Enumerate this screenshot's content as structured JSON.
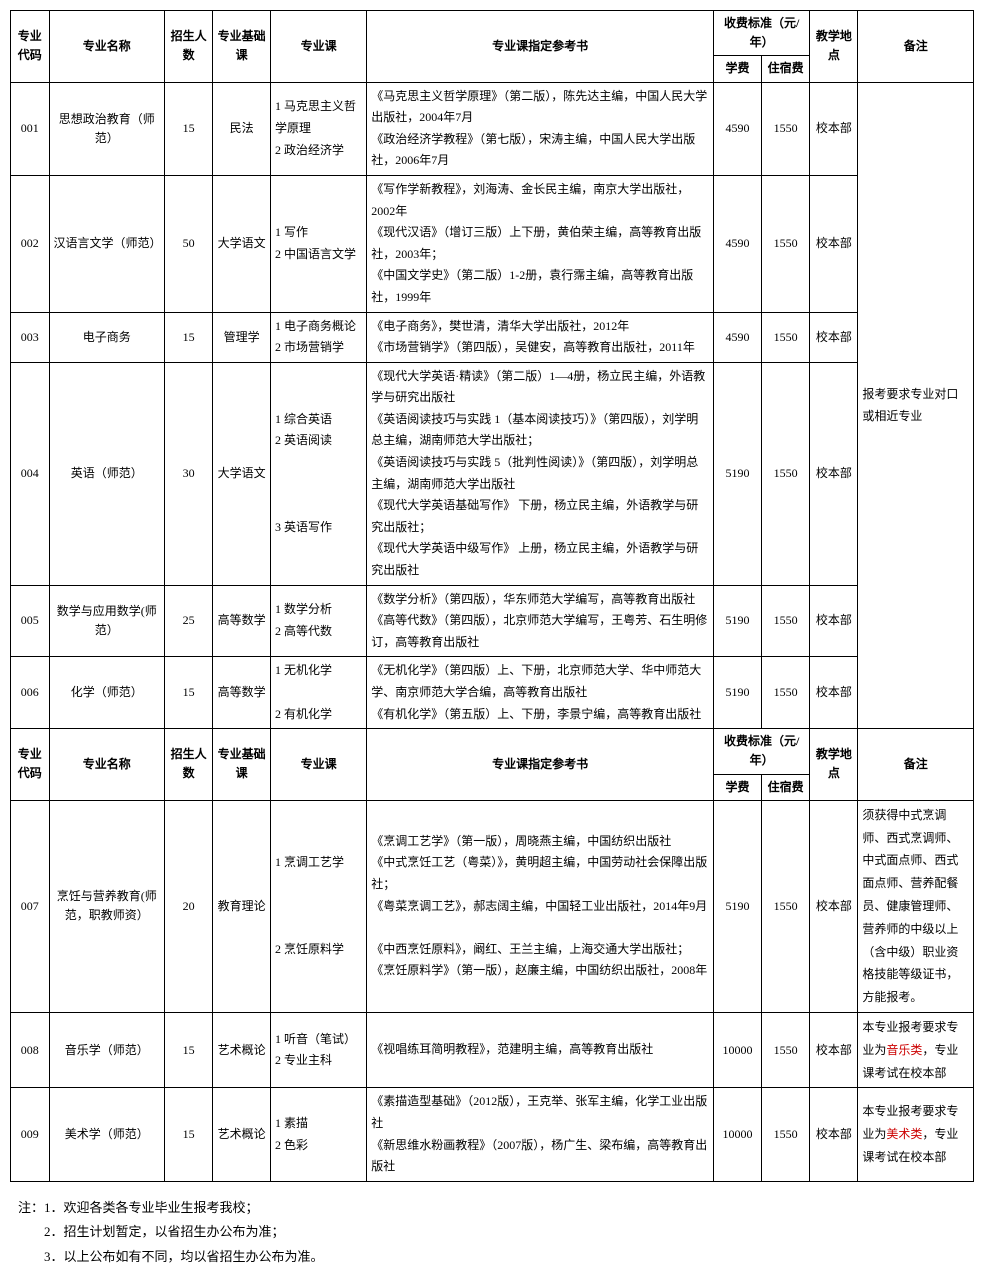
{
  "table1": {
    "headers": {
      "code": "专业代码",
      "name": "专业名称",
      "num": "招生人数",
      "base": "专业基础课",
      "course": "专业课",
      "ref": "专业课指定参考书",
      "fee": "收费标准（元/年）",
      "fee1": "学费",
      "fee2": "住宿费",
      "loc": "教学地点",
      "remark": "备注"
    },
    "rows": [
      {
        "code": "001",
        "name": "思想政治教育（师范）",
        "num": "15",
        "base": "民法",
        "course": "1 马克思主义哲学原理\n2 政治经济学",
        "ref": "《马克思主义哲学原理》（第二版），陈先达主编，中国人民大学出版社，2004年7月\n《政治经济学教程》（第七版），宋涛主编，中国人民大学出版社，2006年7月",
        "fee1": "4590",
        "fee2": "1550",
        "loc": "校本部"
      },
      {
        "code": "002",
        "name": "汉语言文学（师范）",
        "num": "50",
        "base": "大学语文",
        "course": "1 写作\n2 中国语言文学",
        "ref": "《写作学新教程》，刘海涛、金长民主编，南京大学出版社，2002年\n《现代汉语》（增订三版）上下册，黄伯荣主编，高等教育出版社，2003年；\n《中国文学史》（第二版）1-2册，袁行霈主编，高等教育出版社，1999年",
        "fee1": "4590",
        "fee2": "1550",
        "loc": "校本部"
      },
      {
        "code": "003",
        "name": "电子商务",
        "num": "15",
        "base": "管理学",
        "course": "1 电子商务概论\n2 市场营销学",
        "ref": "《电子商务》，樊世清，清华大学出版社，2012年\n《市场营销学》（第四版），吴健安，高等教育出版社，2011年",
        "fee1": "4590",
        "fee2": "1550",
        "loc": "校本部"
      },
      {
        "code": "004",
        "name": "英语（师范）",
        "num": "30",
        "base": "大学语文",
        "course": "1 综合英语\n2 英语阅读\n\n\n\n3 英语写作",
        "ref": "《现代大学英语·精读》（第二版）1—4册，杨立民主编，外语教学与研究出版社\n《英语阅读技巧与实践 1（基本阅读技巧）》（第四版），刘学明总主编，湖南师范大学出版社；\n《英语阅读技巧与实践 5（批判性阅读）》（第四版），刘学明总主编，湖南师范大学出版社\n《现代大学英语基础写作》 下册，杨立民主编，外语教学与研究出版社；\n《现代大学英语中级写作》 上册，杨立民主编，外语教学与研究出版社",
        "fee1": "5190",
        "fee2": "1550",
        "loc": "校本部"
      },
      {
        "code": "005",
        "name": "数学与应用数学(师范）",
        "num": "25",
        "base": "高等数学",
        "course": "1 数学分析\n2 高等代数",
        "ref": "《数学分析》（第四版），华东师范大学编写，高等教育出版社\n《高等代数》（第四版），北京师范大学编写，王粤芳、石生明修订，高等教育出版社",
        "fee1": "5190",
        "fee2": "1550",
        "loc": "校本部"
      },
      {
        "code": "006",
        "name": "化学（师范）",
        "num": "15",
        "base": "高等数学",
        "course": "1 无机化学\n\n2 有机化学",
        "ref": "《无机化学》（第四版）上、下册，北京师范大学、华中师范大学、南京师范大学合编，高等教育出版社\n《有机化学》（第五版）上、下册，李景宁编，高等教育出版社",
        "fee1": "5190",
        "fee2": "1550",
        "loc": "校本部"
      }
    ],
    "remark_common": "报考要求专业对口或相近专业"
  },
  "table2": {
    "rows": [
      {
        "code": "007",
        "name": "烹饪与营养教育(师范，职教师资）",
        "num": "20",
        "base": "教育理论",
        "course": "1 烹调工艺学\n\n\n\n2 烹饪原料学",
        "ref": "《烹调工艺学》（第一版），周晓燕主编，中国纺织出版社\n《中式烹饪工艺（粤菜）》，黄明超主编，中国劳动社会保障出版社；\n《粤菜烹调工艺》，郝志阔主编，中国轻工业出版社，2014年9月\n\n《中西烹饪原料》，阚红、王兰主编，上海交通大学出版社；\n《烹饪原料学》（第一版），赵廉主编，中国纺织出版社，2008年",
        "fee1": "5190",
        "fee2": "1550",
        "loc": "校本部",
        "remark": "须获得中式烹调师、西式烹调师、中式面点师、西式面点师、营养配餐员、健康管理师、营养师的中级以上（含中级）职业资格技能等级证书，方能报考。"
      },
      {
        "code": "008",
        "name": "音乐学（师范）",
        "num": "15",
        "base": "艺术概论",
        "course": "1 听音（笔试）\n2 专业主科",
        "ref": "《视唱练耳简明教程》，范建明主编，高等教育出版社",
        "fee1": "10000",
        "fee2": "1550",
        "loc": "校本部",
        "remark_pre": "本专业报考要求专业为",
        "remark_red": "音乐类",
        "remark_post": "，专业课考试在校本部"
      },
      {
        "code": "009",
        "name": "美术学（师范）",
        "num": "15",
        "base": "艺术概论",
        "course": "1 素描\n2 色彩",
        "ref": "《素描造型基础》（2012版），王克举、张军主编，化学工业出版社\n《新思维水粉画教程》（2007版），杨广生、梁布编，高等教育出版社",
        "fee1": "10000",
        "fee2": "1550",
        "loc": "校本部",
        "remark_pre": "本专业报考要求专业为",
        "remark_red": "美术类",
        "remark_post": "，专业课考试在校本部"
      }
    ]
  },
  "notes": {
    "prefix": "注：",
    "n1": "1．欢迎各类各专业毕业生报考我校；",
    "n2": "2．招生计划暂定，以省招生办公布为准；",
    "n3": "3．以上公布如有不同，均以省招生办公布为准。"
  }
}
